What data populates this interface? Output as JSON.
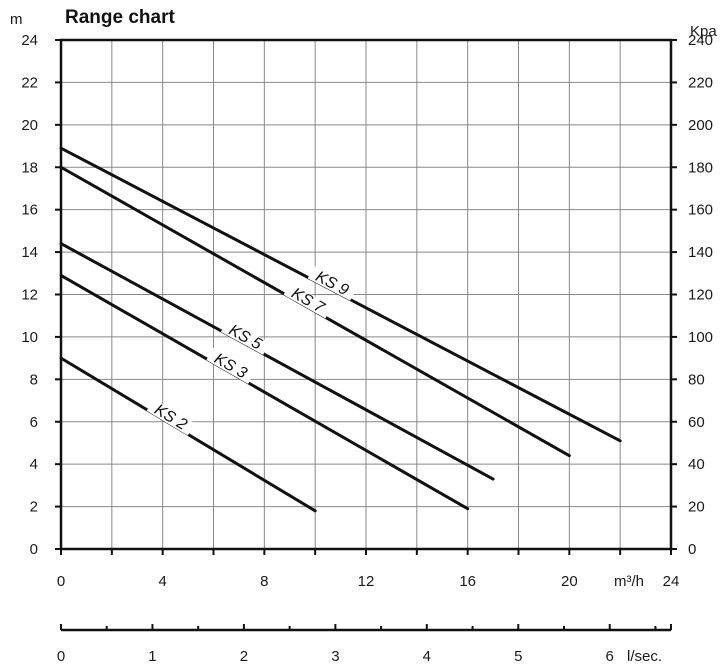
{
  "chart_data": {
    "type": "line",
    "title": "Range chart",
    "xlabel": "m³/h",
    "ylabel": "m",
    "y2label": "Kpa",
    "x2label": "l/sec.",
    "xlim": [
      0,
      24
    ],
    "ylim": [
      0,
      24
    ],
    "y2lim": [
      0,
      240
    ],
    "x2lim": [
      0,
      6.67
    ],
    "x_ticks": [
      0,
      4,
      8,
      12,
      16,
      20
    ],
    "x_end_tick": 24,
    "y_ticks": [
      0,
      2,
      4,
      6,
      8,
      10,
      12,
      14,
      16,
      18,
      20,
      22,
      24
    ],
    "y2_ticks": [
      0,
      20,
      40,
      60,
      80,
      100,
      120,
      140,
      160,
      180,
      200,
      220,
      240
    ],
    "x2_ticks": [
      0,
      1,
      2,
      3,
      4,
      5,
      6
    ],
    "grid": true,
    "series": [
      {
        "name": "KS 2",
        "x": [
          0,
          10
        ],
        "y": [
          9.0,
          1.8
        ]
      },
      {
        "name": "KS 3",
        "x": [
          0,
          16
        ],
        "y": [
          12.9,
          1.9
        ]
      },
      {
        "name": "KS 5",
        "x": [
          0,
          17
        ],
        "y": [
          14.4,
          3.3
        ]
      },
      {
        "name": "KS 7",
        "x": [
          0,
          20
        ],
        "y": [
          18.0,
          4.4
        ]
      },
      {
        "name": "KS 9",
        "x": [
          0,
          22
        ],
        "y": [
          18.9,
          5.1
        ]
      }
    ]
  }
}
